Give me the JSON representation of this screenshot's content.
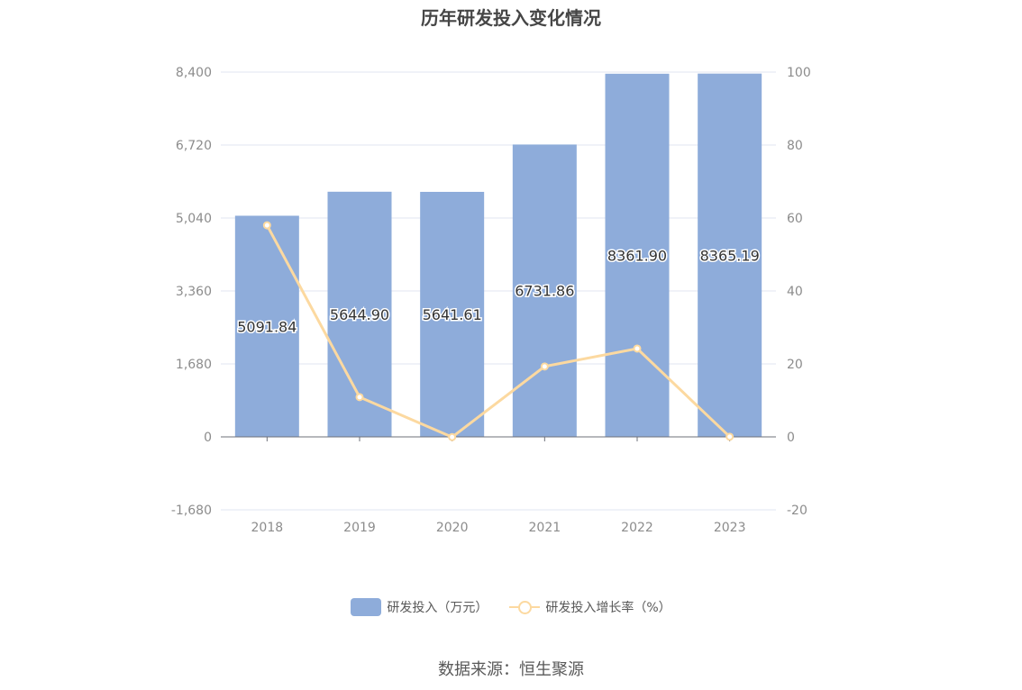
{
  "chart_data": {
    "type": "bar",
    "title": "历年研发投入变化情况",
    "categories": [
      "2018",
      "2019",
      "2020",
      "2021",
      "2022",
      "2023"
    ],
    "series": [
      {
        "name": "研发投入（万元）",
        "type": "bar",
        "axis": "left",
        "values": [
          5091.84,
          5644.9,
          5641.61,
          6731.86,
          8361.9,
          8365.19
        ],
        "labels": [
          "5091.84",
          "5644.90",
          "5641.61",
          "6731.86",
          "8361.90",
          "8365.19"
        ],
        "color": "#8eacda"
      },
      {
        "name": "研发投入增长率（%）",
        "type": "line",
        "axis": "right",
        "values": [
          58.0,
          10.9,
          -0.06,
          19.3,
          24.2,
          0.04
        ],
        "color": "#fcd9a0"
      }
    ],
    "y_left": {
      "ylim": [
        -1680,
        8400
      ],
      "ticks": [
        -1680,
        0,
        1680,
        3360,
        5040,
        6720,
        8400
      ],
      "tick_labels": [
        "-1,680",
        "0",
        "1,680",
        "3,360",
        "5,040",
        "6,720",
        "8,400"
      ]
    },
    "y_right": {
      "ylim": [
        -20,
        100
      ],
      "ticks": [
        -20,
        0,
        20,
        40,
        60,
        80,
        100
      ],
      "tick_labels": [
        "-20",
        "0",
        "20",
        "40",
        "60",
        "80",
        "100"
      ]
    },
    "grid": true,
    "legend_position": "bottom-center"
  },
  "source_text": "数据来源：恒生聚源",
  "colors": {
    "bar": "#8eacda",
    "line": "#fcd9a0",
    "grid": "#e0e6f1",
    "axis_text": "#8c8c8c"
  }
}
